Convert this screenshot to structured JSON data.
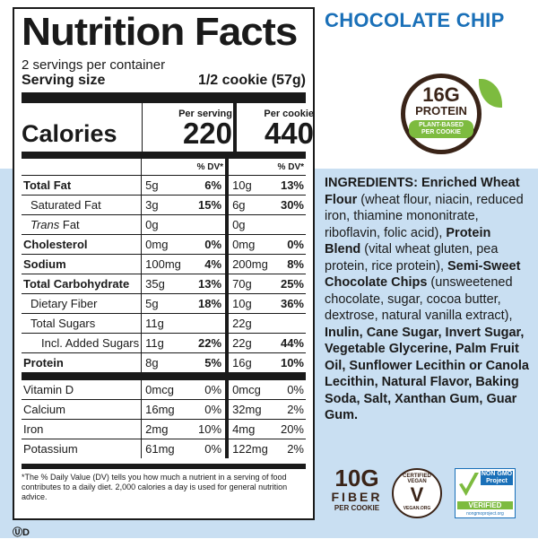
{
  "label": {
    "title": "Nutrition Facts",
    "servings": "2 servings per container",
    "serving_size_label": "Serving size",
    "serving_size_value": "1/2 cookie (57g)",
    "calories_label": "Calories",
    "per_serving_label": "Per serving",
    "per_cookie_label": "Per cookie",
    "calories_serving": "220",
    "calories_cookie": "440",
    "dv_label": "% DV*",
    "rows": [
      {
        "name": "Total Fat",
        "a": "5g",
        "adv": "6%",
        "b": "10g",
        "bdv": "13%"
      },
      {
        "name": "Saturated Fat",
        "a": "3g",
        "adv": "15%",
        "b": "6g",
        "bdv": "30%"
      },
      {
        "name": "Trans Fat",
        "a": "0g",
        "adv": "",
        "b": "0g",
        "bdv": ""
      },
      {
        "name": "Cholesterol",
        "a": "0mg",
        "adv": "0%",
        "b": "0mg",
        "bdv": "0%"
      },
      {
        "name": "Sodium",
        "a": "100mg",
        "adv": "4%",
        "b": "200mg",
        "bdv": "8%"
      },
      {
        "name": "Total Carbohydrate",
        "a": "35g",
        "adv": "13%",
        "b": "70g",
        "bdv": "25%"
      },
      {
        "name": "Dietary Fiber",
        "a": "5g",
        "adv": "18%",
        "b": "10g",
        "bdv": "36%"
      },
      {
        "name": "Total Sugars",
        "a": "11g",
        "adv": "",
        "b": "22g",
        "bdv": ""
      },
      {
        "name": "Incl. Added Sugars",
        "a": "11g",
        "adv": "22%",
        "b": "22g",
        "bdv": "44%"
      },
      {
        "name": "Protein",
        "a": "8g",
        "adv": "5%",
        "b": "16g",
        "bdv": "10%"
      },
      {
        "name": "Vitamin D",
        "a": "0mcg",
        "adv": "0%",
        "b": "0mcg",
        "bdv": "0%"
      },
      {
        "name": "Calcium",
        "a": "16mg",
        "adv": "0%",
        "b": "32mg",
        "bdv": "2%"
      },
      {
        "name": "Iron",
        "a": "2mg",
        "adv": "10%",
        "b": "4mg",
        "bdv": "20%"
      },
      {
        "name": "Potassium",
        "a": "61mg",
        "adv": "0%",
        "b": "122mg",
        "bdv": "2%"
      }
    ],
    "footnote": "*The % Daily Value (DV) tells you how much a nutrient in a serving of food contributes to a daily diet. 2,000 calories a day is used for general nutrition advice."
  },
  "flavor": "CHOCOLATE CHIP",
  "protein_badge": {
    "amount": "16G",
    "word": "PROTEIN",
    "line1": "PLANT-BASED",
    "line2": "PER COOKIE"
  },
  "ingredients": {
    "p1_bold": "INGREDIENTS: Enriched Wheat Flour",
    "p1": " (wheat flour, niacin, reduced iron, thiamine mononitrate, riboflavin, folic acid), ",
    "p2_bold": "Protein Blend",
    "p2": " (vital wheat gluten, pea protein, rice protein), ",
    "p3_bold": "Semi-Sweet Chocolate Chips",
    "p3": " (unsweetened chocolate, sugar, cocoa butter, dextrose, natural vanilla extract), ",
    "p4_bold": "Inulin, Cane Sugar, Invert Sugar, Vegetable Glycerine, Palm Fruit Oil, Sunflower Lecithin or Canola Lecithin, Natural Flavor, Baking Soda, Salt, Xanthan Gum, Guar Gum."
  },
  "fiber_badge": {
    "amount": "10G",
    "word": "FIBER",
    "sub": "PER COOKIE"
  },
  "vegan_badge": {
    "top": "CERTIFIED VEGAN",
    "bottom": "VEGAN.ORG"
  },
  "nongmo_badge": {
    "top": "NON GMO Project",
    "verified": "VERIFIED",
    "site": "nongmoproject.org"
  },
  "kosher": "D",
  "colors": {
    "brand_blue": "#1a70b8",
    "green": "#7dbb3f",
    "brown": "#3a2418",
    "background": "#c9dff2"
  }
}
